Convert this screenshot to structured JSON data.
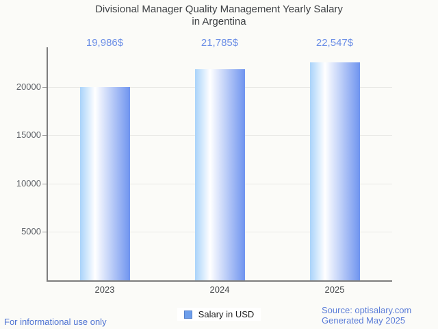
{
  "title": {
    "line1": "Divisional Manager Quality Management Yearly Salary",
    "line2": "in Argentina"
  },
  "chart_data": {
    "type": "bar",
    "title": "Divisional Manager Quality Management Yearly Salary in Argentina",
    "categories": [
      "2023",
      "2024",
      "2025"
    ],
    "values": [
      19986,
      21785,
      22547
    ],
    "value_labels": [
      "19,986$",
      "21,785$",
      "22,547$"
    ],
    "series": [
      {
        "name": "Salary in USD",
        "values": [
          19986,
          21785,
          22547
        ]
      }
    ],
    "xlabel": "",
    "ylabel": "",
    "ylim": [
      0,
      24000
    ],
    "yticks": [
      5000,
      10000,
      15000,
      20000
    ],
    "grid": true,
    "legend_position": "bottom",
    "bar_gradient": [
      "#a9d3fa",
      "#ffffff",
      "#6f94ef"
    ]
  },
  "legend": {
    "label": "Salary in USD",
    "swatch_color": "#6d9eeb"
  },
  "footer": {
    "left": "For informational use only",
    "source": "Source: optisalary.com",
    "generated": "Generated May 2025"
  },
  "colors": {
    "background": "#fbfbf8",
    "title_text": "#3f4245",
    "value_label_text": "#6b8ee6",
    "axis": "#7d7d7d",
    "gridline": "#e8e8e5",
    "y_tick_text": "#5f6368",
    "x_tick_text": "#3f4245",
    "footer_left_text": "#4d72d2",
    "footer_right_text": "#5b7dd8"
  }
}
